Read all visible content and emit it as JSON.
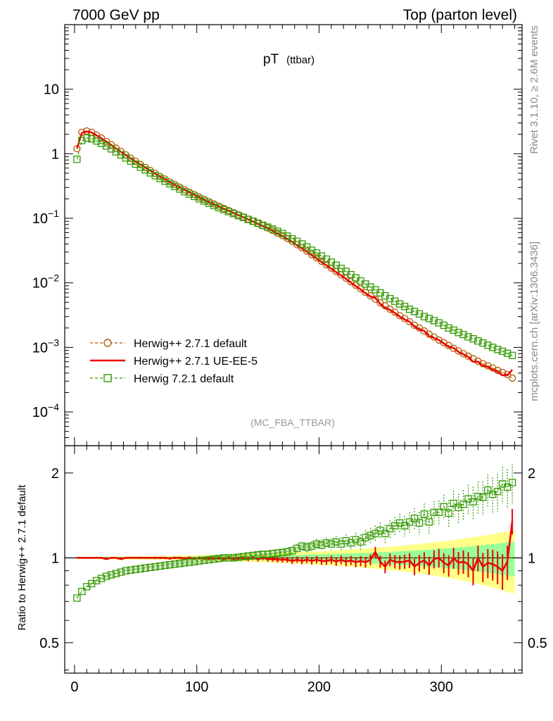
{
  "header": {
    "left": "7000 GeV pp",
    "right": "Top (parton level)"
  },
  "side_labels": {
    "rivet": "Rivet 3.1.10, ≥ 2.6M events",
    "mcplots": "mcplots.cern.ch [arXiv:1306.3436]"
  },
  "chart_data": {
    "type": "line",
    "title": "pT",
    "title_sub": "(ttbar)",
    "analysis_tag": "(MC_FBA_TTBAR)",
    "x_ticks": [
      "0",
      "100",
      "200",
      "300"
    ],
    "xlim": [
      -8,
      366
    ],
    "main": {
      "y_scale": "log",
      "ylim": [
        3e-05,
        100
      ],
      "y_ticks": [
        {
          "v": 10,
          "m": "10",
          "e": ""
        },
        {
          "v": 1,
          "m": "1",
          "e": ""
        },
        {
          "v": 0.1,
          "m": "10",
          "e": "−1"
        },
        {
          "v": 0.01,
          "m": "10",
          "e": "−2"
        },
        {
          "v": 0.001,
          "m": "10",
          "e": "−3"
        },
        {
          "v": 0.0001,
          "m": "10",
          "e": "−4"
        }
      ],
      "legend_position": "bottom-left",
      "x": [
        2,
        6,
        10,
        14,
        18,
        22,
        26,
        30,
        34,
        38,
        42,
        46,
        50,
        54,
        58,
        62,
        66,
        70,
        74,
        78,
        82,
        86,
        90,
        94,
        98,
        102,
        106,
        110,
        114,
        118,
        122,
        126,
        130,
        134,
        138,
        142,
        146,
        150,
        154,
        158,
        162,
        166,
        170,
        174,
        178,
        182,
        186,
        190,
        194,
        198,
        202,
        206,
        210,
        214,
        218,
        222,
        226,
        230,
        234,
        238,
        242,
        246,
        250,
        254,
        258,
        262,
        266,
        270,
        274,
        278,
        282,
        286,
        290,
        294,
        298,
        302,
        306,
        310,
        314,
        318,
        322,
        326,
        330,
        334,
        338,
        342,
        346,
        350,
        354,
        358
      ],
      "series": [
        {
          "name": "Herwig++ 2.7.1 default",
          "color": "#b35900",
          "marker": "circle",
          "dash": true,
          "values": [
            1.2,
            2.15,
            2.25,
            2.15,
            1.95,
            1.75,
            1.55,
            1.38,
            1.22,
            1.08,
            0.96,
            0.85,
            0.76,
            0.68,
            0.61,
            0.55,
            0.495,
            0.445,
            0.405,
            0.365,
            0.333,
            0.303,
            0.277,
            0.253,
            0.232,
            0.213,
            0.196,
            0.181,
            0.167,
            0.154,
            0.142,
            0.132,
            0.122,
            0.113,
            0.105,
            0.097,
            0.09,
            0.083,
            0.077,
            0.071,
            0.065,
            0.059,
            0.054,
            0.049,
            0.044,
            0.039,
            0.035,
            0.031,
            0.0275,
            0.0244,
            0.0216,
            0.0191,
            0.0169,
            0.015,
            0.0133,
            0.0118,
            0.0104,
            0.0092,
            0.0081,
            0.0071,
            0.0063,
            0.0056,
            0.0049,
            0.0044,
            0.0039,
            0.0035,
            0.0031,
            0.0028,
            0.0025,
            0.0022,
            0.002,
            0.0018,
            0.0016,
            0.00145,
            0.0013,
            0.00118,
            0.00107,
            0.00097,
            0.00088,
            0.0008,
            0.00073,
            0.00067,
            0.00061,
            0.00056,
            0.00052,
            0.00048,
            0.00044,
            0.00041,
            0.00038,
            0.000335
          ]
        },
        {
          "name": "Herwig++ 2.7.1 UE-EE-5",
          "color": "#ee0000",
          "marker": "none",
          "dash": false,
          "values": [
            1.2,
            2.1,
            2.22,
            2.13,
            1.93,
            1.74,
            1.54,
            1.37,
            1.21,
            1.07,
            0.955,
            0.845,
            0.755,
            0.676,
            0.607,
            0.547,
            0.492,
            0.443,
            0.403,
            0.364,
            0.332,
            0.302,
            0.276,
            0.252,
            0.231,
            0.212,
            0.195,
            0.18,
            0.166,
            0.153,
            0.141,
            0.131,
            0.121,
            0.112,
            0.104,
            0.096,
            0.089,
            0.082,
            0.076,
            0.07,
            0.064,
            0.058,
            0.053,
            0.048,
            0.043,
            0.038,
            0.034,
            0.0303,
            0.0268,
            0.0238,
            0.021,
            0.0186,
            0.0165,
            0.0146,
            0.013,
            0.0115,
            0.0101,
            0.0089,
            0.0079,
            0.0069,
            0.0061,
            0.0059,
            0.0047,
            0.0041,
            0.0038,
            0.0034,
            0.003,
            0.0027,
            0.0025,
            0.0021,
            0.0019,
            0.0018,
            0.0015,
            0.0014,
            0.0013,
            0.00115,
            0.00102,
            0.00098,
            0.00085,
            0.00078,
            0.00071,
            0.0006,
            0.0006,
            0.00052,
            0.0005,
            0.00045,
            0.00042,
            0.00037,
            0.00037,
            0.00045
          ]
        },
        {
          "name": "Herwig 7.2.1 default",
          "color": "#339900",
          "marker": "square",
          "dash": true,
          "values": [
            0.82,
            1.6,
            1.75,
            1.7,
            1.58,
            1.45,
            1.32,
            1.19,
            1.07,
            0.96,
            0.86,
            0.77,
            0.69,
            0.62,
            0.56,
            0.505,
            0.457,
            0.413,
            0.376,
            0.341,
            0.311,
            0.284,
            0.259,
            0.237,
            0.218,
            0.2,
            0.185,
            0.171,
            0.158,
            0.146,
            0.136,
            0.127,
            0.118,
            0.11,
            0.103,
            0.096,
            0.09,
            0.084,
            0.078,
            0.073,
            0.068,
            0.063,
            0.058,
            0.053,
            0.048,
            0.044,
            0.04,
            0.036,
            0.032,
            0.029,
            0.026,
            0.0233,
            0.0209,
            0.0187,
            0.0167,
            0.015,
            0.0134,
            0.012,
            0.0107,
            0.0096,
            0.0086,
            0.0078,
            0.007,
            0.0063,
            0.0057,
            0.0052,
            0.0047,
            0.0043,
            0.0039,
            0.0036,
            0.0033,
            0.003,
            0.0028,
            0.0026,
            0.0024,
            0.0022,
            0.002,
            0.00185,
            0.0017,
            0.00158,
            0.00146,
            0.00136,
            0.00126,
            0.00117,
            0.00108,
            0.001,
            0.00093,
            0.00087,
            0.00081,
            0.00075
          ]
        }
      ]
    },
    "ratio": {
      "ylabel": "Ratio to Herwig++ 2.7.1 default",
      "y_scale": "log",
      "ylim": [
        0.39,
        2.5
      ],
      "y_ticks": [
        "0.5",
        "1",
        "2"
      ],
      "reference": "Herwig++ 2.7.1 default",
      "band_inner": [
        0.005,
        0.005,
        0.005,
        0.005,
        0.005,
        0.005,
        0.006,
        0.006,
        0.006,
        0.006,
        0.007,
        0.007,
        0.007,
        0.008,
        0.008,
        0.008,
        0.009,
        0.009,
        0.009,
        0.01,
        0.01,
        0.01,
        0.011,
        0.011,
        0.012,
        0.012,
        0.013,
        0.013,
        0.013,
        0.014,
        0.015,
        0.015,
        0.016,
        0.016,
        0.017,
        0.017,
        0.018,
        0.019,
        0.019,
        0.02,
        0.021,
        0.022,
        0.022,
        0.023,
        0.024,
        0.025,
        0.026,
        0.027,
        0.028,
        0.029,
        0.03,
        0.031,
        0.032,
        0.033,
        0.035,
        0.036,
        0.037,
        0.039,
        0.04,
        0.042,
        0.043,
        0.045,
        0.047,
        0.049,
        0.051,
        0.053,
        0.055,
        0.057,
        0.06,
        0.062,
        0.065,
        0.067,
        0.07,
        0.073,
        0.076,
        0.079,
        0.082,
        0.085,
        0.089,
        0.093,
        0.097,
        0.101,
        0.105,
        0.11,
        0.114,
        0.119,
        0.124,
        0.13,
        0.135,
        0.14
      ],
      "band_outer": [
        0.009,
        0.009,
        0.01,
        0.01,
        0.01,
        0.011,
        0.011,
        0.011,
        0.012,
        0.012,
        0.013,
        0.013,
        0.014,
        0.014,
        0.015,
        0.015,
        0.016,
        0.016,
        0.017,
        0.018,
        0.018,
        0.019,
        0.02,
        0.021,
        0.021,
        0.022,
        0.023,
        0.024,
        0.025,
        0.026,
        0.027,
        0.028,
        0.029,
        0.03,
        0.031,
        0.032,
        0.034,
        0.035,
        0.036,
        0.037,
        0.039,
        0.04,
        0.042,
        0.043,
        0.045,
        0.047,
        0.049,
        0.05,
        0.052,
        0.054,
        0.056,
        0.059,
        0.061,
        0.063,
        0.066,
        0.068,
        0.071,
        0.073,
        0.076,
        0.079,
        0.082,
        0.085,
        0.089,
        0.092,
        0.096,
        0.099,
        0.103,
        0.107,
        0.111,
        0.116,
        0.12,
        0.125,
        0.13,
        0.135,
        0.14,
        0.146,
        0.151,
        0.157,
        0.163,
        0.17,
        0.177,
        0.184,
        0.191,
        0.199,
        0.207,
        0.215,
        0.224,
        0.233,
        0.242,
        0.25
      ],
      "series": [
        {
          "name": "Herwig++ 2.7.1 UE-EE-5",
          "color": "#ee0000",
          "marker": "none",
          "dash": false,
          "values": [
            1.0,
            1.0,
            1.0,
            1.0,
            1.0,
            1.0,
            0.99,
            1.0,
            1.0,
            0.99,
            1.0,
            1.0,
            1.0,
            1.0,
            1.0,
            1.0,
            1.0,
            1.0,
            1.0,
            0.995,
            1.0,
            1.0,
            0.995,
            1.0,
            0.995,
            1.0,
            0.995,
            0.995,
            0.995,
            1.0,
            0.99,
            1.0,
            0.99,
            0.995,
            1.0,
            0.99,
            1.0,
            0.99,
            1.0,
            0.99,
            0.99,
            0.985,
            0.985,
            0.985,
            0.975,
            0.985,
            0.975,
            0.985,
            0.975,
            0.985,
            0.975,
            0.975,
            0.985,
            0.97,
            0.985,
            0.97,
            0.98,
            0.965,
            0.975,
            0.965,
            0.985,
            1.05,
            0.97,
            0.93,
            0.985,
            0.97,
            0.965,
            0.97,
            0.98,
            0.93,
            0.96,
            0.98,
            0.94,
            0.99,
            1.0,
            0.96,
            0.94,
            1.0,
            0.96,
            0.97,
            0.95,
            0.9,
            1.0,
            0.93,
            0.96,
            0.95,
            0.93,
            0.9,
            0.97,
            1.35
          ],
          "errors": [
            0.005,
            0.005,
            0.005,
            0.005,
            0.005,
            0.005,
            0.006,
            0.006,
            0.006,
            0.006,
            0.007,
            0.007,
            0.007,
            0.008,
            0.008,
            0.008,
            0.009,
            0.009,
            0.009,
            0.01,
            0.01,
            0.01,
            0.011,
            0.011,
            0.012,
            0.012,
            0.013,
            0.013,
            0.013,
            0.014,
            0.015,
            0.015,
            0.016,
            0.016,
            0.017,
            0.017,
            0.018,
            0.019,
            0.019,
            0.02,
            0.021,
            0.022,
            0.022,
            0.023,
            0.024,
            0.025,
            0.026,
            0.027,
            0.028,
            0.029,
            0.03,
            0.031,
            0.032,
            0.033,
            0.035,
            0.036,
            0.037,
            0.039,
            0.04,
            0.042,
            0.043,
            0.045,
            0.047,
            0.049,
            0.051,
            0.053,
            0.055,
            0.057,
            0.06,
            0.062,
            0.065,
            0.067,
            0.07,
            0.073,
            0.076,
            0.079,
            0.082,
            0.085,
            0.089,
            0.093,
            0.097,
            0.101,
            0.105,
            0.11,
            0.114,
            0.119,
            0.124,
            0.13,
            0.135,
            0.14
          ]
        },
        {
          "name": "Herwig 7.2.1 default",
          "color": "#339900",
          "marker": "square",
          "dash": true,
          "values": [
            0.72,
            0.76,
            0.79,
            0.81,
            0.83,
            0.845,
            0.86,
            0.87,
            0.88,
            0.89,
            0.9,
            0.905,
            0.91,
            0.915,
            0.92,
            0.925,
            0.93,
            0.935,
            0.94,
            0.945,
            0.95,
            0.955,
            0.96,
            0.965,
            0.97,
            0.975,
            0.98,
            0.985,
            0.99,
            0.995,
            1.0,
            1.0,
            1.0,
            1.005,
            1.01,
            1.015,
            1.02,
            1.025,
            1.03,
            1.03,
            1.035,
            1.04,
            1.045,
            1.05,
            1.06,
            1.08,
            1.1,
            1.09,
            1.1,
            1.12,
            1.11,
            1.13,
            1.12,
            1.14,
            1.12,
            1.15,
            1.13,
            1.16,
            1.14,
            1.18,
            1.2,
            1.22,
            1.25,
            1.22,
            1.27,
            1.3,
            1.33,
            1.3,
            1.34,
            1.38,
            1.33,
            1.43,
            1.34,
            1.45,
            1.45,
            1.52,
            1.44,
            1.56,
            1.51,
            1.55,
            1.62,
            1.58,
            1.65,
            1.64,
            1.74,
            1.68,
            1.72,
            1.83,
            1.78,
            1.85
          ],
          "errors": [
            0.008,
            0.008,
            0.008,
            0.008,
            0.009,
            0.009,
            0.009,
            0.009,
            0.01,
            0.01,
            0.01,
            0.011,
            0.011,
            0.011,
            0.012,
            0.012,
            0.013,
            0.013,
            0.014,
            0.014,
            0.015,
            0.015,
            0.016,
            0.016,
            0.017,
            0.018,
            0.018,
            0.019,
            0.02,
            0.021,
            0.022,
            0.022,
            0.023,
            0.024,
            0.025,
            0.026,
            0.027,
            0.028,
            0.03,
            0.031,
            0.032,
            0.034,
            0.035,
            0.037,
            0.038,
            0.04,
            0.042,
            0.044,
            0.046,
            0.048,
            0.05,
            0.052,
            0.055,
            0.057,
            0.06,
            0.063,
            0.066,
            0.069,
            0.072,
            0.075,
            0.079,
            0.083,
            0.086,
            0.091,
            0.095,
            0.099,
            0.104,
            0.109,
            0.114,
            0.12,
            0.125,
            0.131,
            0.137,
            0.144,
            0.151,
            0.158,
            0.165,
            0.173,
            0.181,
            0.19,
            0.199,
            0.208,
            0.218,
            0.228,
            0.239,
            0.25,
            0.262,
            0.274,
            0.287,
            0.3
          ]
        }
      ]
    }
  }
}
